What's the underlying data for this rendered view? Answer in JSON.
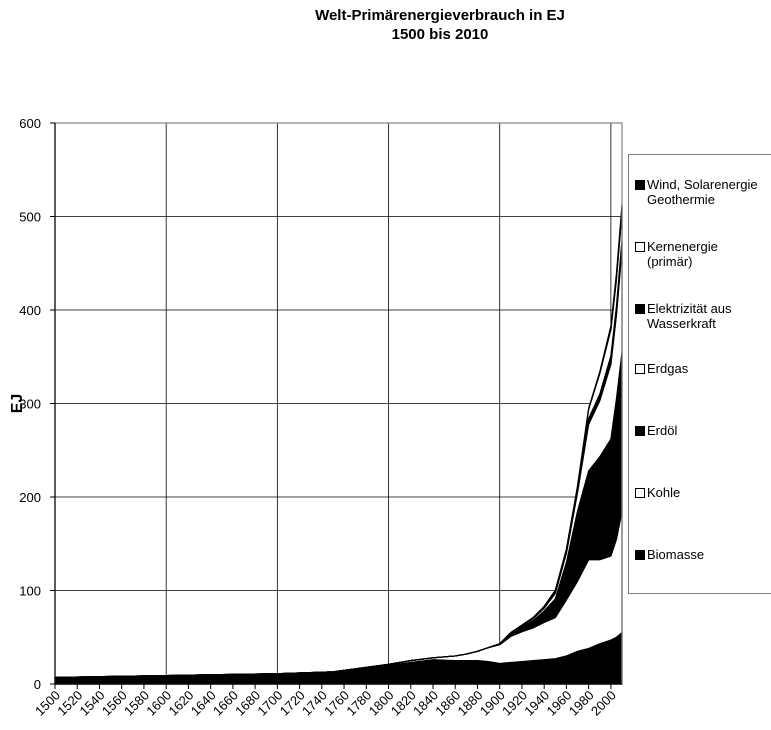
{
  "chart_data": {
    "type": "area",
    "stacked": true,
    "title": "Welt-Primärenergieverbrauch in EJ",
    "subtitle": "1500 bis 2010",
    "xlabel": "",
    "ylabel": "EJ",
    "xlim": [
      1500,
      2010
    ],
    "ylim": [
      0,
      600
    ],
    "yticks": [
      0,
      100,
      200,
      300,
      400,
      500,
      600
    ],
    "xticks": [
      1500,
      1520,
      1540,
      1560,
      1580,
      1600,
      1620,
      1640,
      1660,
      1680,
      1700,
      1720,
      1740,
      1760,
      1780,
      1800,
      1820,
      1840,
      1860,
      1880,
      1900,
      1920,
      1940,
      1960,
      1980,
      2000
    ],
    "grid": true,
    "legend_position": "right",
    "x": [
      1500,
      1550,
      1600,
      1650,
      1700,
      1750,
      1800,
      1820,
      1840,
      1860,
      1870,
      1880,
      1890,
      1900,
      1910,
      1920,
      1930,
      1940,
      1950,
      1960,
      1970,
      1980,
      1990,
      2000,
      2005,
      2010
    ],
    "series": [
      {
        "name": "Biomasse",
        "color": "#000000",
        "values": [
          7,
          8,
          9,
          10,
          11,
          13,
          20,
          23,
          26,
          25,
          25,
          25,
          24,
          22,
          23,
          24,
          25,
          26,
          27,
          30,
          35,
          38,
          43,
          47,
          50,
          55
        ]
      },
      {
        "name": "Kohle",
        "color": "#ffffff",
        "values": [
          0,
          0,
          0,
          0,
          0,
          0,
          1,
          2,
          2,
          5,
          7,
          10,
          15,
          20,
          28,
          32,
          35,
          40,
          44,
          60,
          75,
          95,
          90,
          90,
          105,
          130
        ]
      },
      {
        "name": "Erdöl",
        "color": "#000000",
        "values": [
          0,
          0,
          0,
          0,
          0,
          0,
          0,
          0,
          0,
          0,
          0,
          0,
          0,
          1,
          3,
          5,
          8,
          12,
          20,
          40,
          75,
          95,
          110,
          125,
          150,
          170
        ]
      },
      {
        "name": "Erdgas",
        "color": "#ffffff",
        "values": [
          0,
          0,
          0,
          0,
          0,
          0,
          0,
          0,
          0,
          0,
          0,
          0,
          0,
          0,
          1,
          1,
          2,
          3,
          6,
          10,
          20,
          50,
          60,
          80,
          90,
          110
        ]
      },
      {
        "name": "Elektrizität aus\nWasserkraft",
        "color": "#000000",
        "values": [
          0,
          0,
          0,
          0,
          0,
          0,
          0,
          0,
          0,
          0,
          0,
          0,
          0,
          0,
          0,
          1,
          1,
          2,
          3,
          4,
          5,
          6,
          7,
          9,
          9,
          10
        ]
      },
      {
        "name": "Kernenergie\n(primär)",
        "color": "#ffffff",
        "values": [
          0,
          0,
          0,
          0,
          0,
          0,
          0,
          0,
          0,
          0,
          0,
          0,
          0,
          0,
          0,
          0,
          0,
          0,
          0,
          0,
          1,
          10,
          22,
          28,
          29,
          30
        ]
      },
      {
        "name": "Wind, Solarenergie\nGeothermie",
        "color": "#000000",
        "values": [
          0,
          0,
          0,
          0,
          0,
          0,
          0,
          0,
          0,
          0,
          0,
          0,
          0,
          0,
          0,
          0,
          0,
          0,
          0,
          0,
          1,
          1,
          2,
          4,
          6,
          8
        ]
      }
    ]
  }
}
